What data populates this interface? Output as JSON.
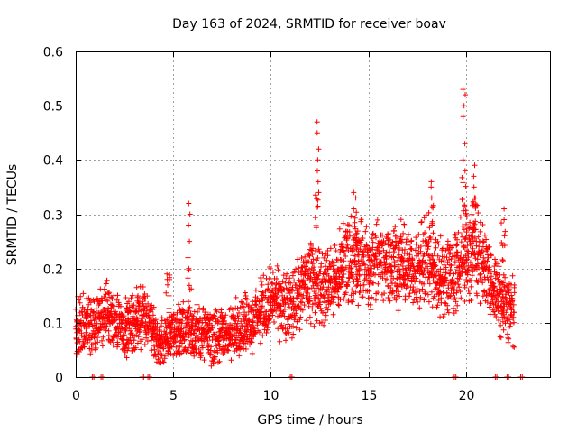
{
  "chart_data": {
    "type": "scatter",
    "title": "Day 163 of 2024, SRMTID for receiver boav",
    "xlabel": "GPS time / hours",
    "ylabel": "SRMTID / TECUs",
    "xlim": [
      0,
      24.3
    ],
    "ylim": [
      0,
      0.6
    ],
    "xticks": [
      0,
      5,
      10,
      15,
      20
    ],
    "xtick_labels": [
      "0",
      "5",
      "10",
      "15",
      "20"
    ],
    "yticks": [
      0,
      0.1,
      0.2,
      0.3,
      0.4,
      0.5,
      0.6
    ],
    "ytick_labels": [
      "0",
      "0.1",
      "0.2",
      "0.3",
      "0.4",
      "0.5",
      "0.6"
    ],
    "grid": true,
    "marker": "+",
    "color": "#ff0000",
    "series": [
      {
        "name": "SRMTID",
        "trend_hours": [
          0,
          0.5,
          1.0,
          1.5,
          2.0,
          2.5,
          3.0,
          3.5,
          4.0,
          4.5,
          5.0,
          5.5,
          6.0,
          6.5,
          7.0,
          7.5,
          8.0,
          8.5,
          9.0,
          9.5,
          10.0,
          10.5,
          11.0,
          11.5,
          12.0,
          12.5,
          13.0,
          13.5,
          14.0,
          14.5,
          15.0,
          15.5,
          16.0,
          16.5,
          17.0,
          17.5,
          18.0,
          18.5,
          19.0,
          19.5,
          20.0,
          20.5,
          21.0,
          21.5,
          22.0,
          22.5
        ],
        "trend_values": [
          0.09,
          0.1,
          0.09,
          0.12,
          0.1,
          0.09,
          0.1,
          0.12,
          0.08,
          0.06,
          0.08,
          0.09,
          0.09,
          0.08,
          0.07,
          0.08,
          0.08,
          0.1,
          0.1,
          0.12,
          0.14,
          0.13,
          0.13,
          0.16,
          0.18,
          0.17,
          0.17,
          0.19,
          0.22,
          0.21,
          0.2,
          0.21,
          0.22,
          0.21,
          0.2,
          0.2,
          0.22,
          0.19,
          0.18,
          0.2,
          0.23,
          0.24,
          0.2,
          0.16,
          0.13,
          0.12
        ],
        "spikes": [
          {
            "x": 4.7,
            "values": [
              0.17,
              0.18,
              0.19
            ]
          },
          {
            "x": 5.8,
            "values": [
              0.32,
              0.3,
              0.28,
              0.25,
              0.22,
              0.2
            ]
          },
          {
            "x": 12.4,
            "values": [
              0.47,
              0.45,
              0.42,
              0.4,
              0.38,
              0.36,
              0.34
            ]
          },
          {
            "x": 14.3,
            "values": [
              0.34,
              0.33,
              0.31
            ]
          },
          {
            "x": 18.2,
            "values": [
              0.36,
              0.35,
              0.33
            ]
          },
          {
            "x": 19.9,
            "values": [
              0.53,
              0.52,
              0.5,
              0.48,
              0.43,
              0.4,
              0.38
            ]
          },
          {
            "x": 20.4,
            "values": [
              0.39,
              0.37,
              0.35,
              0.33
            ]
          },
          {
            "x": 21.9,
            "values": [
              0.31,
              0.29
            ]
          }
        ],
        "gaps_at_zero": [
          0.85,
          1.3,
          3.4,
          3.7,
          11.0,
          19.4,
          21.5,
          22.1,
          22.8
        ]
      }
    ]
  }
}
